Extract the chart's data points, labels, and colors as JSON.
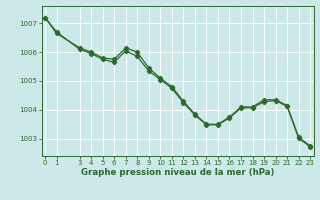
{
  "title": "Graphe pression niveau de la mer (hPa)",
  "x_values": [
    0,
    1,
    3,
    4,
    5,
    6,
    7,
    8,
    9,
    10,
    11,
    12,
    13,
    14,
    15,
    16,
    17,
    18,
    19,
    20,
    21,
    22,
    23
  ],
  "y_series1": [
    1007.2,
    1006.65,
    1006.15,
    1006.0,
    1005.8,
    1005.75,
    1006.15,
    1006.0,
    1005.45,
    1005.1,
    1004.8,
    1004.3,
    1003.85,
    1003.5,
    1003.5,
    1003.75,
    1004.1,
    1004.1,
    1004.35,
    1004.35,
    1004.15,
    1003.05,
    1002.75
  ],
  "y_series2": [
    1007.2,
    1006.7,
    1006.1,
    1005.95,
    1005.75,
    1005.65,
    1006.05,
    1005.85,
    1005.35,
    1005.05,
    1004.75,
    1004.25,
    1003.82,
    1003.48,
    1003.48,
    1003.72,
    1004.07,
    1004.07,
    1004.28,
    1004.32,
    1004.12,
    1003.02,
    1002.72
  ],
  "line_color": "#2d6a2d",
  "bg_color": "#cce8e8",
  "grid_color": "#ffffff",
  "ylim": [
    1002.4,
    1007.6
  ],
  "yticks": [
    1003,
    1004,
    1005,
    1006,
    1007
  ],
  "xticks": [
    0,
    1,
    3,
    4,
    5,
    6,
    7,
    8,
    9,
    10,
    11,
    12,
    13,
    14,
    15,
    16,
    17,
    18,
    19,
    20,
    21,
    22,
    23
  ],
  "tick_fontsize": 5.0,
  "xlabel_fontsize": 6.2
}
